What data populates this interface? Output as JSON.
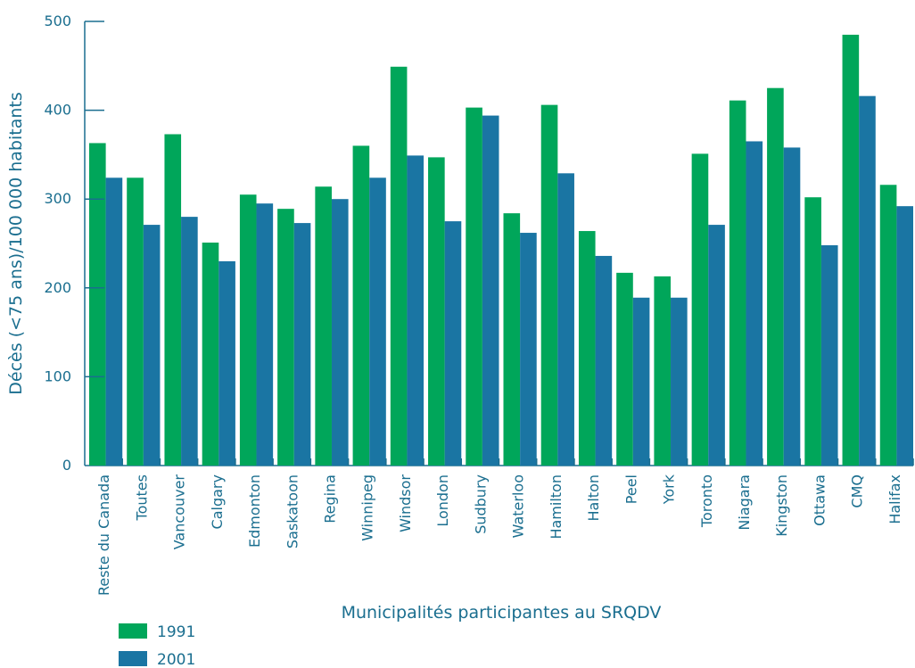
{
  "chart_data": {
    "type": "bar",
    "title": "",
    "xlabel": "Municipalités participantes au SRQDV",
    "ylabel": "Décès (<75 ans)/100 000 habitants",
    "ylim": [
      0,
      500
    ],
    "yticks": [
      "0",
      "100",
      "200",
      "300",
      "400",
      "500"
    ],
    "grid": false,
    "legend_position": "bottom-left",
    "categories": [
      "Reste du Canada",
      "Toutes",
      "Vancouver",
      "Calgary",
      "Edmonton",
      "Saskatoon",
      "Regina",
      "Winnipeg",
      "Windsor",
      "London",
      "Sudbury",
      "Waterloo",
      "Hamilton",
      "Halton",
      "Peel",
      "York",
      "Toronto",
      "Niagara",
      "Kingston",
      "Ottawa",
      "CMQ",
      "Halifax"
    ],
    "series": [
      {
        "name": "1991",
        "color": "#00a65a",
        "values": [
          363,
          324,
          373,
          251,
          305,
          289,
          314,
          360,
          449,
          347,
          403,
          284,
          406,
          264,
          217,
          213,
          351,
          411,
          425,
          302,
          485,
          316
        ]
      },
      {
        "name": "2001",
        "color": "#1a75a3",
        "values": [
          324,
          271,
          280,
          230,
          295,
          273,
          300,
          324,
          349,
          275,
          394,
          262,
          329,
          236,
          189,
          189,
          271,
          365,
          358,
          248,
          416,
          292
        ]
      }
    ]
  }
}
